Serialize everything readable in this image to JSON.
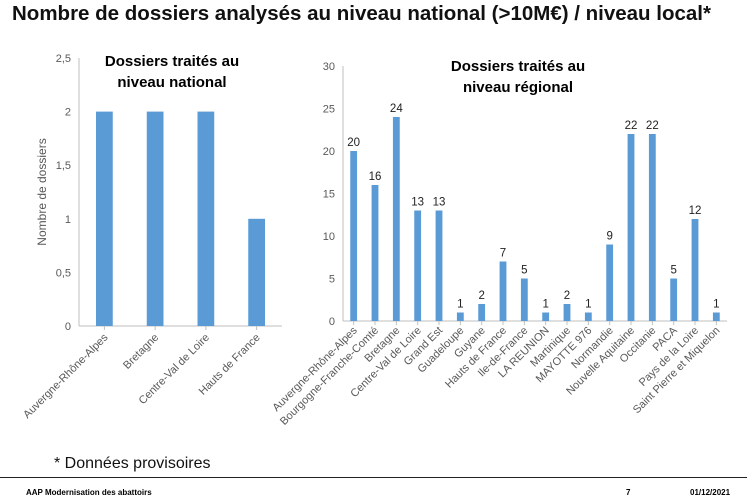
{
  "title": "Nombre de dossiers analysés au niveau national (>10M€) / niveau local*",
  "footnote": "* Données provisoires",
  "footer": {
    "left": "AAP Modernisation des abattoirs",
    "page": "7",
    "date": "01/12/2021"
  },
  "colors": {
    "bar": "#5B9BD5",
    "axis": "#bfbfbf"
  },
  "chart_data": [
    {
      "type": "bar",
      "title_lines": [
        "Dossiers traités au",
        "niveau national"
      ],
      "ylabel": "Nombre de dossiers",
      "ylim": [
        0,
        2.5
      ],
      "yticks": [
        "0",
        "0,5",
        "1",
        "1,5",
        "2",
        "2,5"
      ],
      "categories": [
        "Auvergne-Rhône-Alpes",
        "Bretagne",
        "Centre-Val de Loire",
        "Hauts de France"
      ],
      "values": [
        2,
        2,
        2,
        1
      ],
      "grid": false
    },
    {
      "type": "bar",
      "title_lines": [
        "Dossiers traités au",
        "niveau régional"
      ],
      "ylim": [
        0,
        30
      ],
      "yticks": [
        "0",
        "5",
        "10",
        "15",
        "20",
        "25",
        "30"
      ],
      "categories": [
        "Auvergne-Rhône-Alpes",
        "Bourgogne-Franche-Comté",
        "Bretagne",
        "Centre-Val de Loire",
        "Grand Est",
        "Guadeloupe",
        "Guyane",
        "Hauts de France",
        "Ile-de-France",
        "LA REUNION",
        "Martinique",
        "MAYOTTE 976",
        "Normandie",
        "Nouvelle Aquitaine",
        "Occitanie",
        "PACA",
        "Pays de la Loire",
        "Saint Pierre et Miquelon"
      ],
      "values": [
        20,
        16,
        24,
        13,
        13,
        1,
        2,
        7,
        5,
        1,
        2,
        1,
        9,
        22,
        22,
        5,
        12,
        1
      ],
      "data_labels": true,
      "grid": false
    }
  ]
}
